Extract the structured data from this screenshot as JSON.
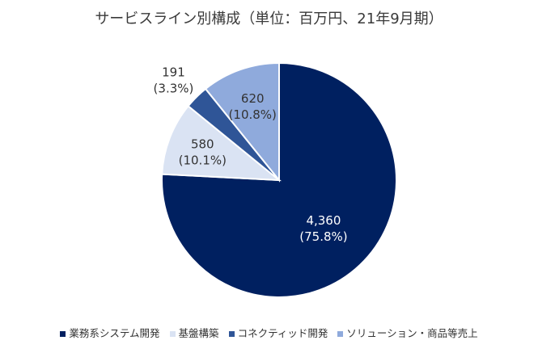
{
  "chart_data": {
    "type": "pie",
    "title": "サービスライン別構成（単位：百万円、21年9月期）",
    "categories": [
      "業務系システム開発",
      "基盤構築",
      "コネクティッド開発",
      "ソリューション・商品等売上"
    ],
    "values": [
      4360,
      580,
      191,
      620
    ],
    "value_labels": [
      "4,360",
      "580",
      "191",
      "620"
    ],
    "percent_labels": [
      "(75.8%)",
      "(10.1%)",
      "(3.3%)",
      "(10.8%)"
    ],
    "colors": [
      "#002060",
      "#dae3f3",
      "#2f5597",
      "#8faadc"
    ],
    "label_colors": [
      "#ffffff",
      "#333333",
      "#333333",
      "#333333"
    ],
    "legend_position": "bottom"
  }
}
